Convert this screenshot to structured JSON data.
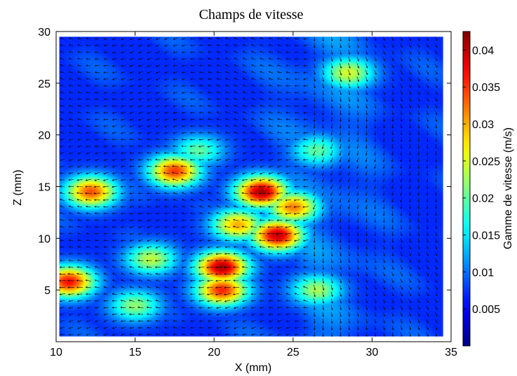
{
  "chart_data": {
    "type": "heatmap",
    "title": "Champs de vitesse",
    "xlabel": "X (mm)",
    "ylabel": "Z (mm)",
    "colorbar_label": "Gamme de vitesse (m/s)",
    "xlim": [
      10,
      35
    ],
    "ylim": [
      0,
      30
    ],
    "x_ticks": [
      10,
      15,
      20,
      25,
      30,
      35
    ],
    "y_ticks": [
      5,
      10,
      15,
      20,
      25,
      30
    ],
    "x_tick_labels": [
      "10",
      "15",
      "20",
      "25",
      "30",
      "35"
    ],
    "y_tick_labels": [
      "5",
      "10",
      "15",
      "20",
      "25",
      "30"
    ],
    "data_extent": {
      "x": [
        10.2,
        34.5
      ],
      "z": [
        0.5,
        29.5
      ]
    },
    "colorbar_range": [
      0,
      0.0425
    ],
    "colorbar_ticks": [
      0.005,
      0.01,
      0.015,
      0.02,
      0.025,
      0.03,
      0.035,
      0.04
    ],
    "colorbar_tick_labels": [
      "0.005",
      "0.01",
      "0.015",
      "0.02",
      "0.025",
      "0.03",
      "0.035",
      "0.04"
    ],
    "colormap": "jet",
    "background_level": 0.007,
    "hotspots": [
      {
        "x": 20.5,
        "z": 7.2,
        "value": 0.041
      },
      {
        "x": 20.5,
        "z": 5.0,
        "value": 0.036
      },
      {
        "x": 24.0,
        "z": 10.3,
        "value": 0.04
      },
      {
        "x": 23.0,
        "z": 14.5,
        "value": 0.041
      },
      {
        "x": 25.0,
        "z": 13.0,
        "value": 0.032
      },
      {
        "x": 21.5,
        "z": 11.3,
        "value": 0.03
      },
      {
        "x": 17.5,
        "z": 16.5,
        "value": 0.035
      },
      {
        "x": 10.8,
        "z": 5.8,
        "value": 0.037
      },
      {
        "x": 12.2,
        "z": 14.5,
        "value": 0.034
      },
      {
        "x": 28.5,
        "z": 26.0,
        "value": 0.025
      },
      {
        "x": 16.0,
        "z": 8.0,
        "value": 0.024
      },
      {
        "x": 26.5,
        "z": 5.0,
        "value": 0.023
      },
      {
        "x": 15.0,
        "z": 3.5,
        "value": 0.022
      },
      {
        "x": 19.0,
        "z": 18.5,
        "value": 0.02
      },
      {
        "x": 26.5,
        "z": 18.5,
        "value": 0.02
      }
    ],
    "flow": {
      "description_free": true,
      "grid_spacing_mm": [
        0.55,
        0.65
      ],
      "arrow_color": "#000000"
    },
    "grid": false,
    "legend": "none"
  }
}
